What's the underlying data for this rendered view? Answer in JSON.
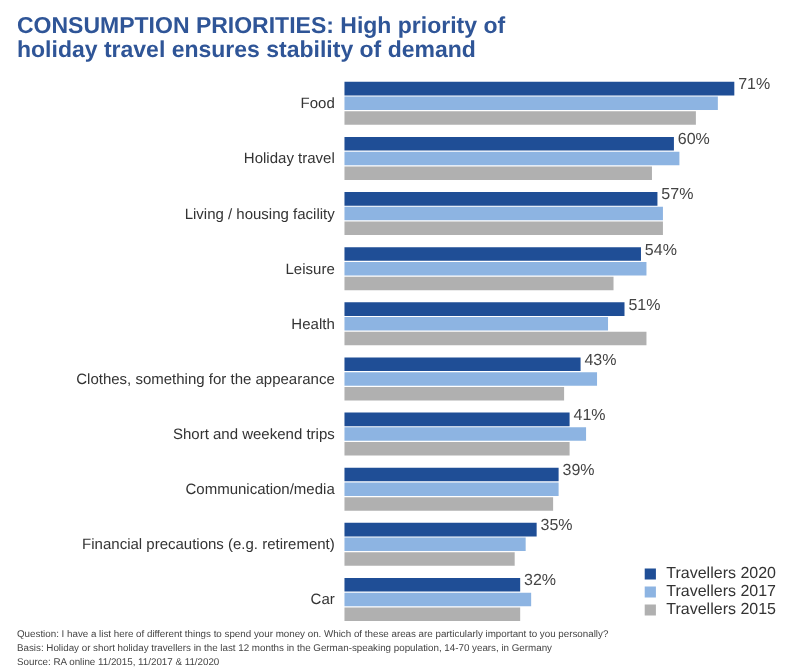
{
  "chart_data": {
    "type": "bar",
    "orientation": "horizontal",
    "title": "CONSUMPTION PRIORITIES: High priority of holiday travel ensures stability of demand",
    "categories": [
      "Food",
      "Holiday travel",
      "Living / housing facility",
      "Leisure",
      "Health",
      "Clothes, something for the appearance",
      "Short and weekend trips",
      "Communication/media",
      "Financial precautions (e.g. retirement)",
      "Car"
    ],
    "series": [
      {
        "name": "Travellers 2020",
        "color": "#1f4e96",
        "values": [
          71,
          60,
          57,
          54,
          51,
          43,
          41,
          39,
          35,
          32
        ],
        "value_labels": [
          "71%",
          "60%",
          "57%",
          "54%",
          "51%",
          "43%",
          "41%",
          "39%",
          "35%",
          "32%"
        ]
      },
      {
        "name": "Travellers 2017",
        "color": "#8db4e2",
        "values": [
          68,
          61,
          58,
          55,
          48,
          46,
          44,
          39,
          33,
          34
        ]
      },
      {
        "name": "Travellers 2015",
        "color": "#b0b0b0",
        "values": [
          64,
          56,
          58,
          49,
          55,
          40,
          41,
          38,
          31,
          32
        ]
      }
    ],
    "annotations": [
      "Question: I have a list here of different things to spend your money on. Which of these areas are particularly important to you personally?",
      "Basis: Holiday or short holiday travellers in the last 12 months in the German-speaking population, 14-70 years, in Germany",
      "Source: RA online 11/2015, 11/2017 & 11/2020"
    ],
    "legend": "bottom right",
    "grid": false,
    "tick_labels": "y"
  }
}
